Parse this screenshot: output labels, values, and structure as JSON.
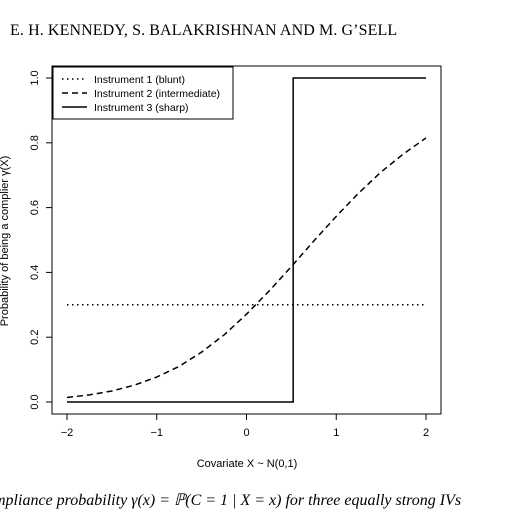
{
  "page": {
    "running_head": "E. H. KENNEDY, S. BALAKRISHNAN AND M. G’SELL",
    "caption": "mpliance probability γ(x) = ℙ(C = 1 | X = x) for three equally strong IVs"
  },
  "chart_data": {
    "type": "line",
    "title": "",
    "xlabel": "Covariate X ~ N(0,1)",
    "ylabel": "Probability of being a complier γ(X)",
    "xlim": [
      -2,
      2
    ],
    "ylim": [
      0,
      1
    ],
    "xticks": [
      -2,
      -1,
      0,
      1,
      2
    ],
    "xtick_labels": [
      "−2",
      "−1",
      "0",
      "1",
      "2"
    ],
    "yticks": [
      0,
      0.2,
      0.4,
      0.6,
      0.8,
      1
    ],
    "ytick_labels": [
      "0.0",
      "0.2",
      "0.4",
      "0.6",
      "0.8",
      "1.0"
    ],
    "grid": false,
    "legend_position": "top-left",
    "series": [
      {
        "name": "Instrument 1 (blunt)",
        "style": "dotted",
        "x": [
          -2,
          2
        ],
        "y": [
          0.3,
          0.3
        ]
      },
      {
        "name": "Instrument 2 (intermediate)",
        "style": "dashed",
        "x": [
          -2,
          -1.75,
          -1.5,
          -1.25,
          -1,
          -0.75,
          -0.5,
          -0.25,
          0,
          0.25,
          0.5,
          0.75,
          1,
          1.25,
          1.5,
          1.75,
          2
        ],
        "y": [
          0.014,
          0.022,
          0.034,
          0.052,
          0.077,
          0.11,
          0.154,
          0.207,
          0.271,
          0.342,
          0.418,
          0.497,
          0.573,
          0.645,
          0.71,
          0.766,
          0.815
        ]
      },
      {
        "name": "Instrument 3 (sharp)",
        "style": "solid",
        "x": [
          -2,
          0.52,
          0.52,
          2
        ],
        "y": [
          0,
          0,
          1,
          1
        ]
      }
    ]
  }
}
